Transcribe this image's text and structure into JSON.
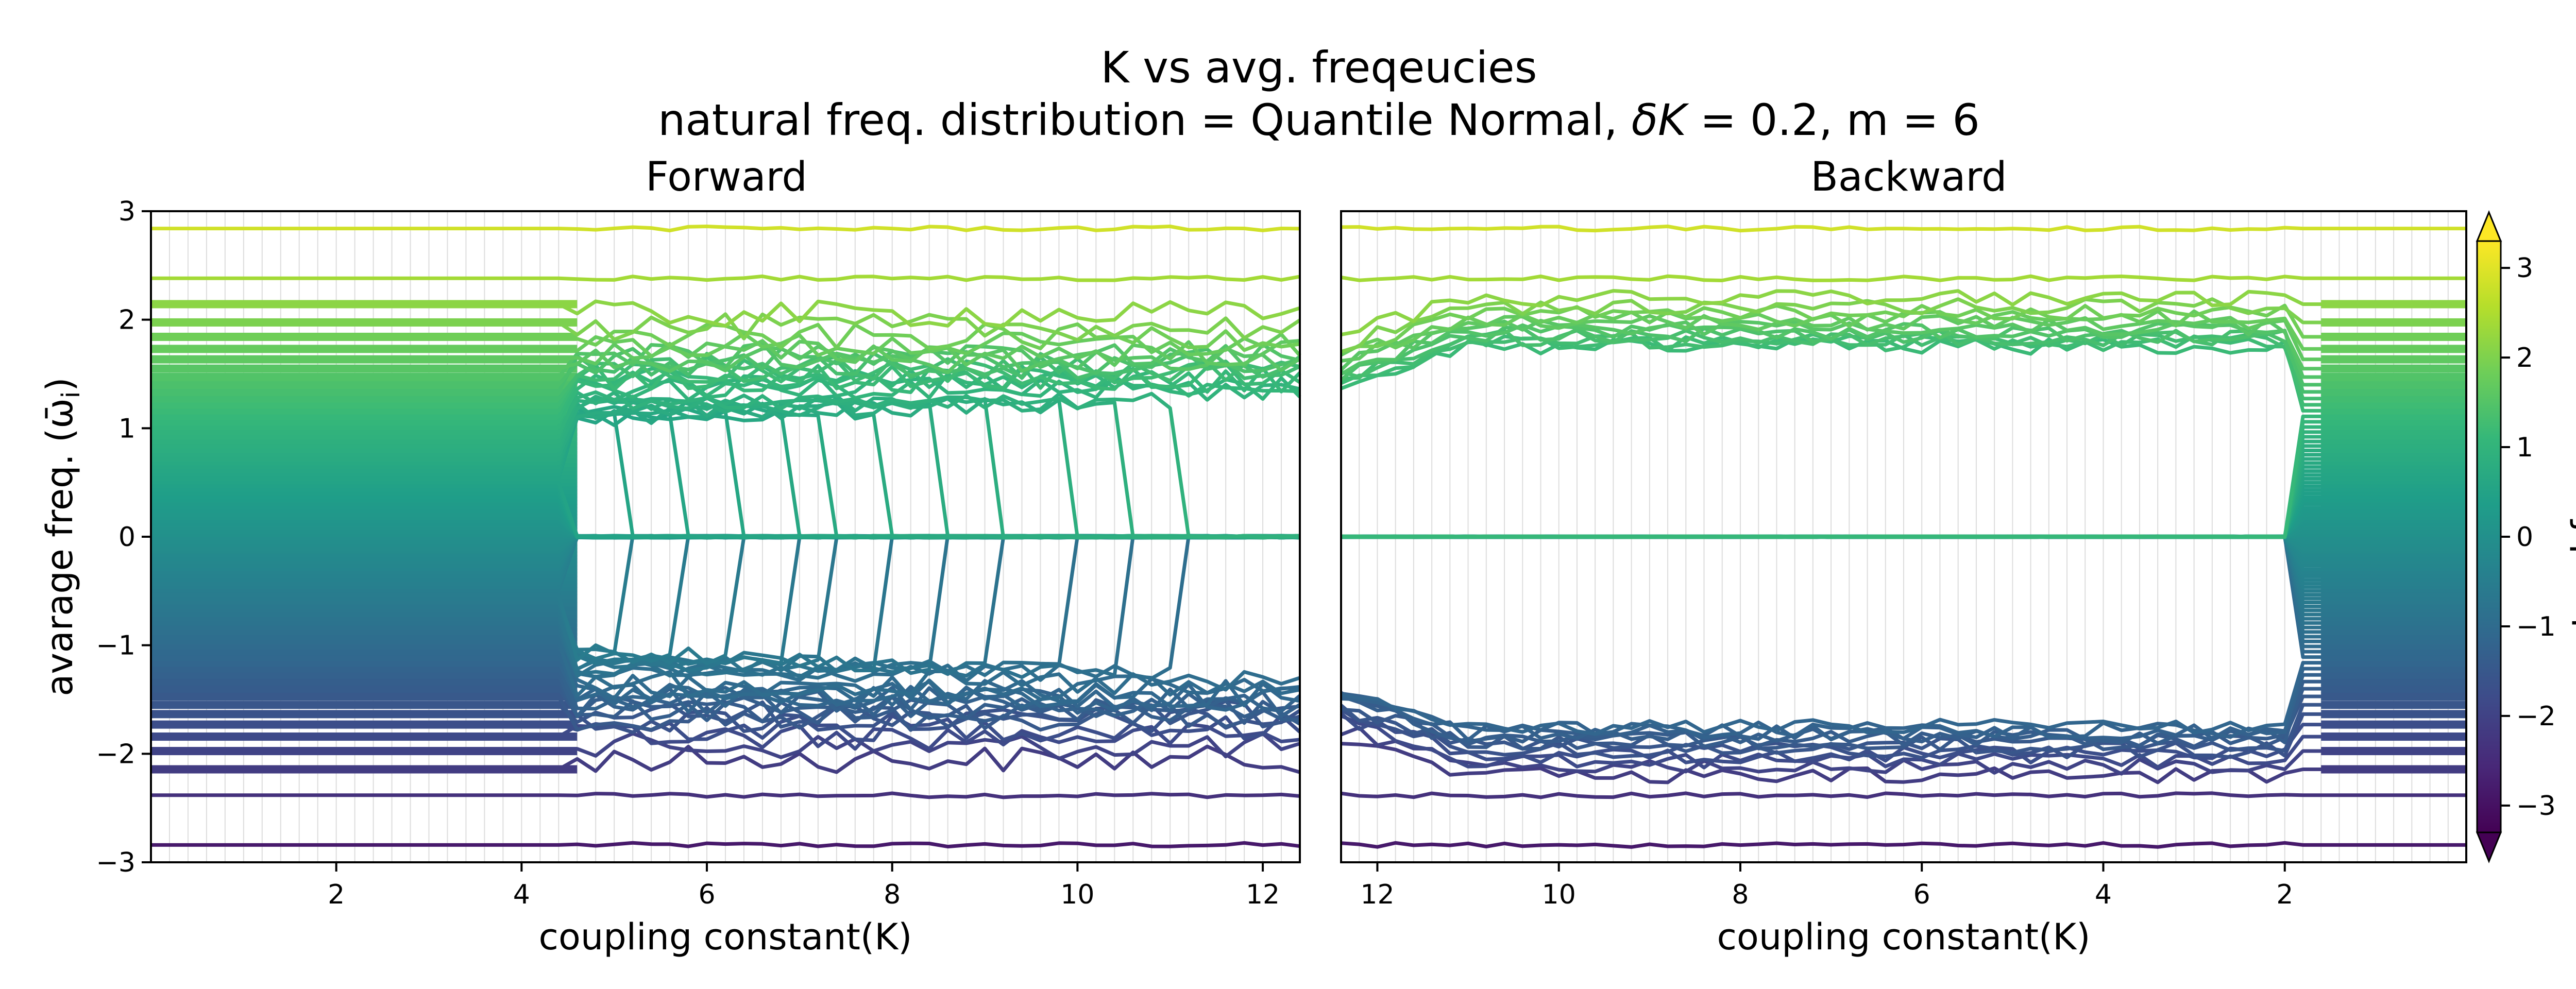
{
  "figure": {
    "title_line1": "K vs avg. freqeucies",
    "title_line2_pre": "natural freq. distribution = Quantile Normal, ",
    "title_line2_dk": "δK",
    "title_line2_post": " = 0.2, m = 6"
  },
  "colorbar": {
    "label": "natural freq. ω",
    "label_sub": "i",
    "ticks": [
      "3",
      "2",
      "1",
      "0",
      "−1",
      "−2",
      "−3"
    ],
    "tick_values": [
      3,
      2,
      1,
      0,
      -1,
      -2,
      -3
    ],
    "range": [
      -3.3,
      3.3
    ],
    "colormap": "viridis",
    "extend": "both"
  },
  "colors": {
    "viridis": [
      "#440154",
      "#482878",
      "#3e4a89",
      "#31688e",
      "#26828e",
      "#1f9e89",
      "#35b779",
      "#6ece58",
      "#b5de2b",
      "#fde725"
    ],
    "grid": "#dddddd",
    "axes": "#000000"
  },
  "chart_data": [
    {
      "type": "line",
      "title": "Forward",
      "xlabel": "coupling constant(K)",
      "ylabel": "avarage freq. (ω̄",
      "ylabel_sub": "i",
      "ylabel_close": ")",
      "xlim": [
        0,
        12.4
      ],
      "ylim": [
        -3,
        3
      ],
      "x_ticks": [
        2,
        4,
        6,
        8,
        10,
        12
      ],
      "x_tick_labels": [
        "2",
        "4",
        "6",
        "8",
        "10",
        "12"
      ],
      "y_ticks": [
        3,
        2,
        1,
        0,
        -1,
        -2,
        -3
      ],
      "y_tick_labels": [
        "3",
        "2",
        "1",
        "0",
        "−1",
        "−2",
        "−3"
      ],
      "K_step": 0.2,
      "oscillators": 90,
      "description_series": "one line per oscillator, colored by natural frequency; frequencies stay at natural values until K≈4.6, then the central oscillators lock to 0 while clusters near ±1.3 and ±1.7..2.2 form",
      "sync_onset_K": 4.6
    },
    {
      "type": "line",
      "title": "Backward",
      "xlabel": "coupling constant(K)",
      "xlim": [
        12.4,
        0
      ],
      "ylim": [
        -3,
        3
      ],
      "x_ticks": [
        12,
        10,
        8,
        6,
        4,
        2
      ],
      "x_tick_labels": [
        "12",
        "10",
        "8",
        "6",
        "4",
        "2"
      ],
      "K_step": 0.2,
      "oscillators": 90,
      "description_series": "starting from high K the central group stays locked at 0 down to K≈2.0, with outer oscillators clustered near ±1.8; below K≈2 all return to natural frequencies",
      "desync_K": 2.0
    }
  ]
}
